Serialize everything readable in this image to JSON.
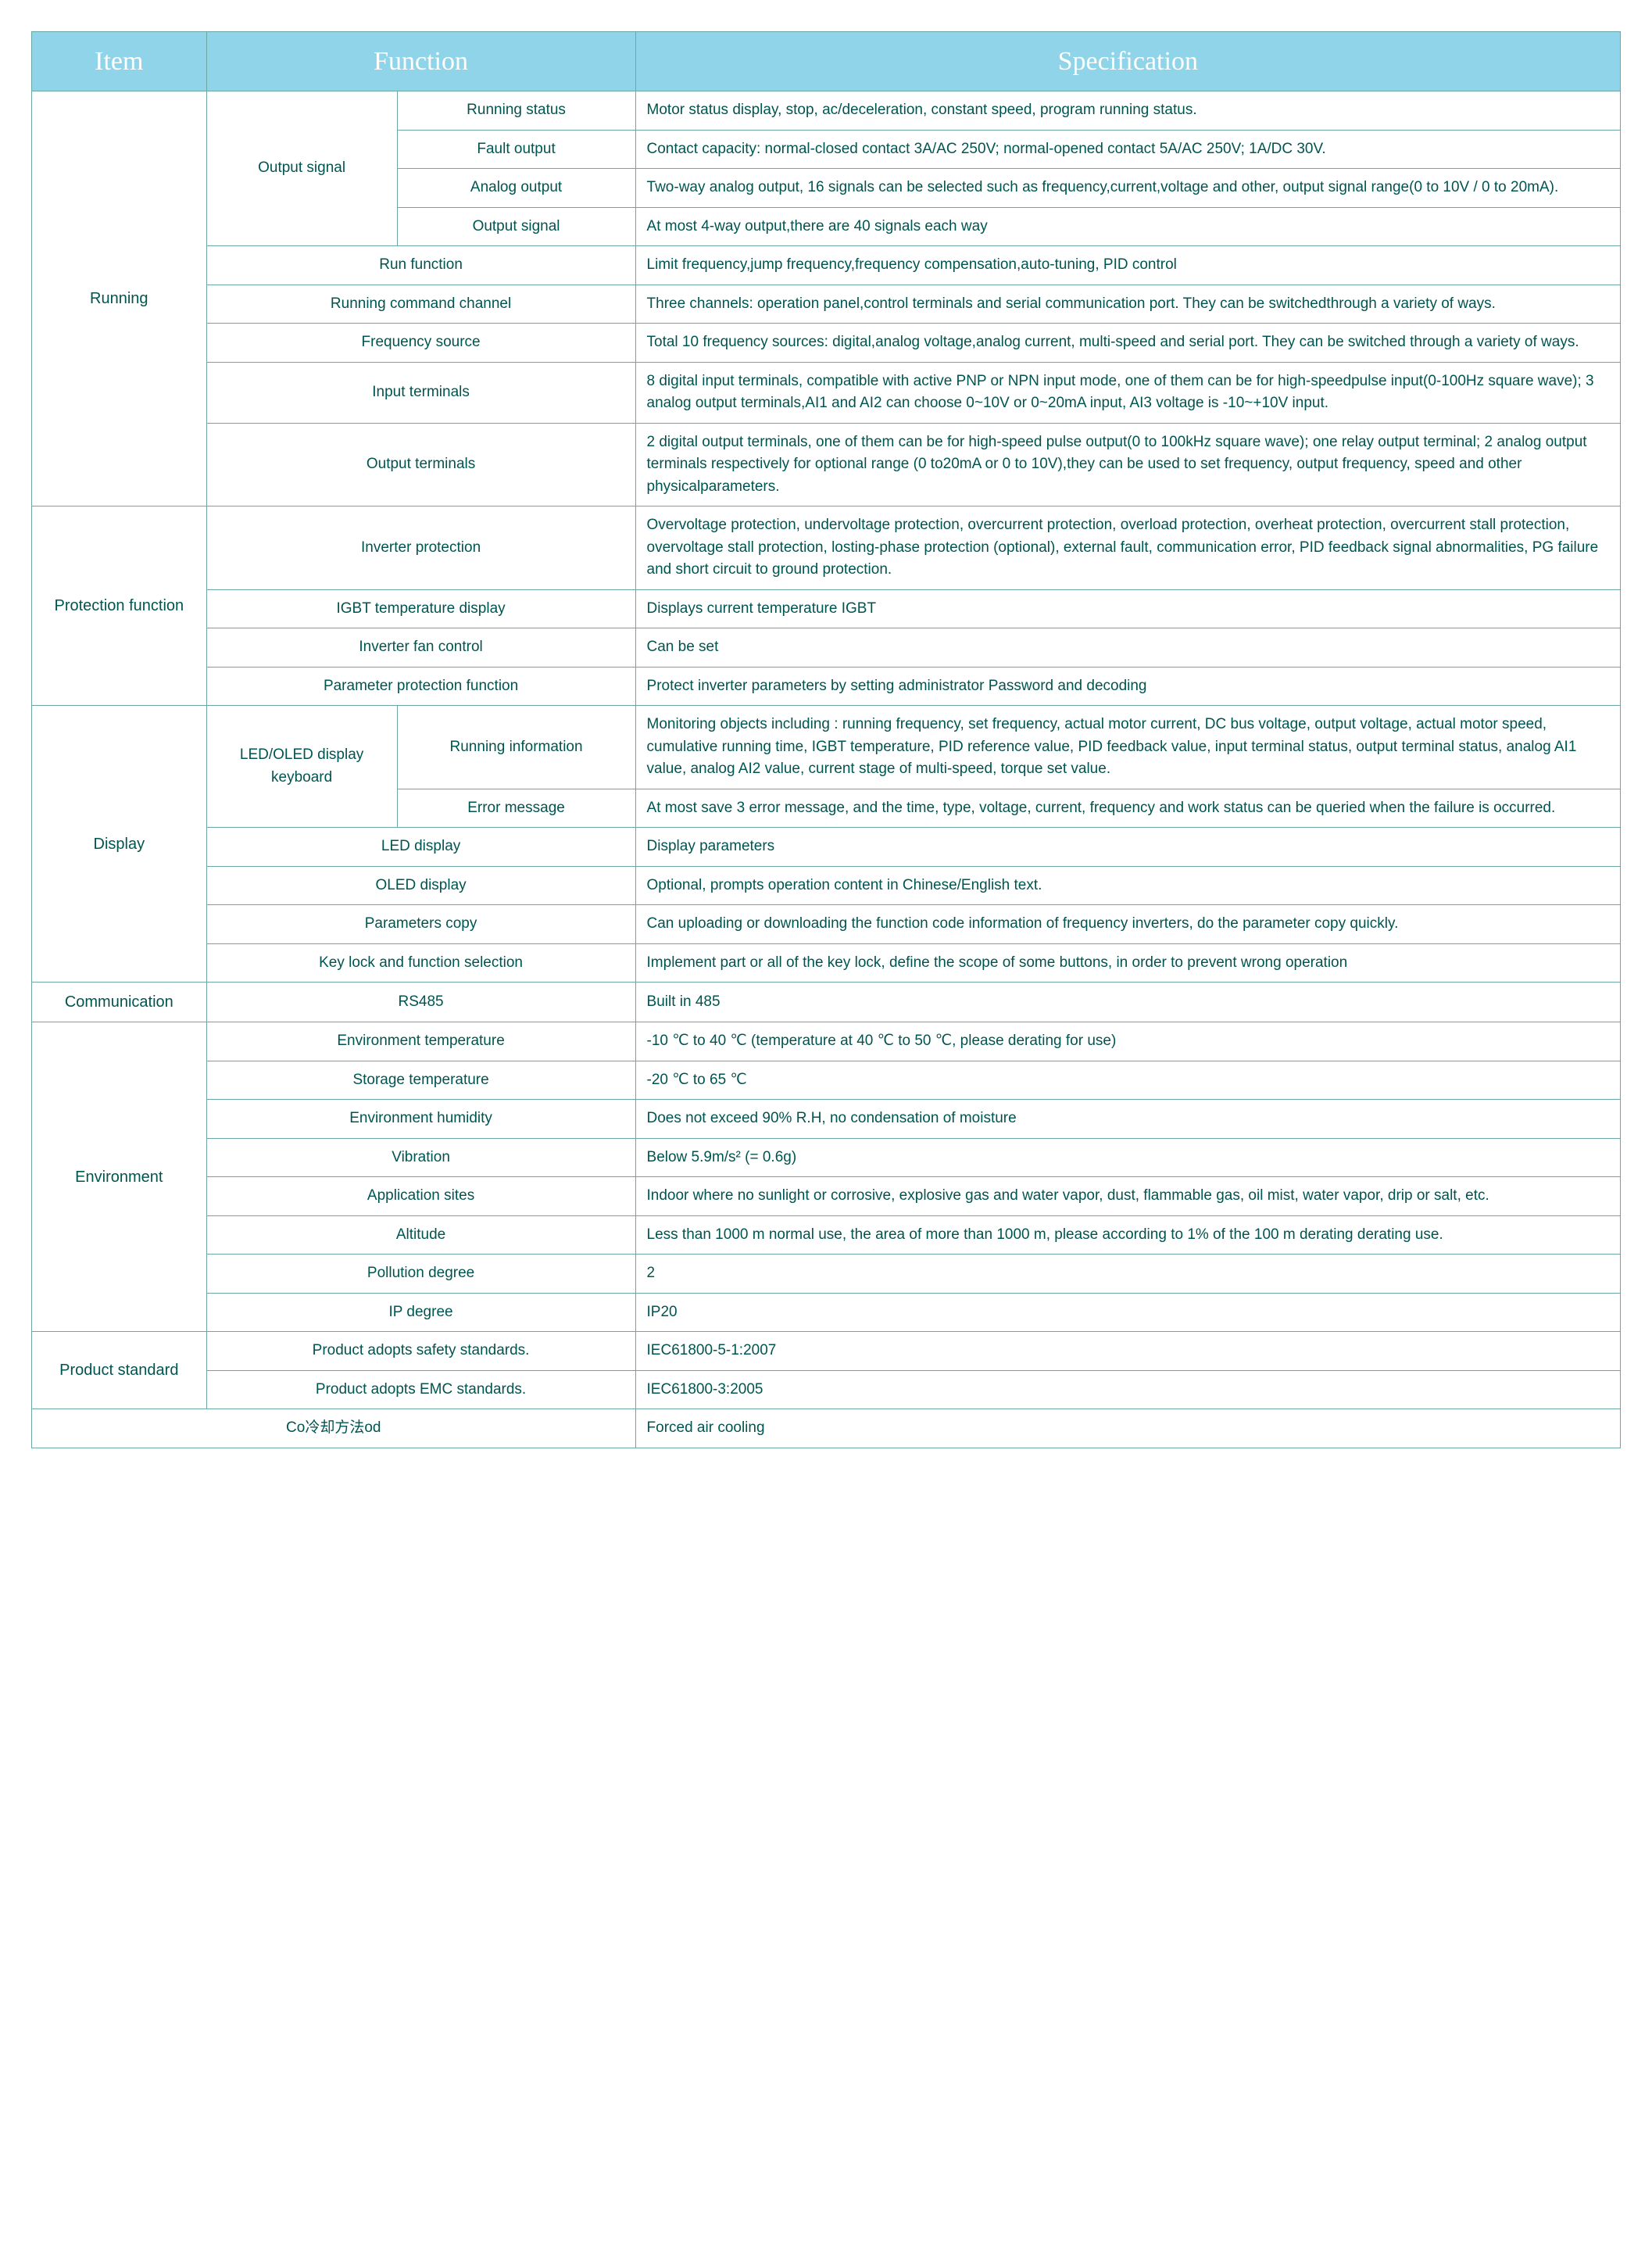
{
  "colors": {
    "header_bg": "#8fd4e8",
    "header_fg": "#ffffff",
    "border": "#6ba8a5",
    "text": "#005550",
    "page_bg": "#ffffff"
  },
  "header": {
    "item": "Item",
    "function": "Function",
    "specification": "Specification"
  },
  "rows": [
    {
      "item": "Running",
      "children": [
        {
          "func_a": "Output signal",
          "children": [
            {
              "func_b": "Running status",
              "spec": "Motor status display, stop, ac/deceleration, constant speed, program running status."
            },
            {
              "func_b": "Fault output",
              "spec": "Contact capacity: normal-closed contact 3A/AC 250V; normal-opened contact 5A/AC 250V; 1A/DC 30V."
            },
            {
              "func_b": "Analog output",
              "spec": "Two-way analog output, 16 signals can be selected such as frequency,current,voltage and other, output signal range(0 to 10V / 0 to 20mA)."
            },
            {
              "func_b": "Output signal",
              "spec": "At most 4-way output,there are 40 signals each way"
            }
          ]
        },
        {
          "func_merged": "Run function",
          "spec": "Limit frequency,jump frequency,frequency compensation,auto-tuning, PID control"
        },
        {
          "func_merged": "Running command channel",
          "spec": "Three channels: operation panel,control terminals and serial communication port. They can be switchedthrough a variety of ways."
        },
        {
          "func_merged": "Frequency source",
          "spec": "Total 10 frequency sources: digital,analog voltage,analog current, multi-speed and serial port. They can be switched through a variety of ways."
        },
        {
          "func_merged": "Input terminals",
          "spec": "8 digital input terminals, compatible with active PNP or NPN input mode, one of them can be for high-speedpulse input(0-100Hz square wave); 3 analog output terminals,AI1 and AI2 can choose 0~10V or 0~20mA input, AI3 voltage is -10~+10V input."
        },
        {
          "func_merged": "Output terminals",
          "spec": "2 digital output terminals, one of them can be for high-speed pulse output(0 to 100kHz square wave); one relay output terminal; 2 analog output terminals respectively for optional range (0 to20mA or 0 to 10V),they can be used to set frequency, output frequency, speed and other physicalparameters."
        }
      ]
    },
    {
      "item": "Protection function",
      "children": [
        {
          "func_merged": "Inverter protection",
          "spec": "Overvoltage protection, undervoltage protection, overcurrent protection, overload protection, overheat protection, overcurrent stall protection, overvoltage stall protection, losting-phase protection (optional), external fault, communication error, PID feedback signal abnormalities, PG failure and short circuit to ground protection."
        },
        {
          "func_merged": "IGBT temperature display",
          "spec": "Displays current temperature IGBT"
        },
        {
          "func_merged": "Inverter fan control",
          "spec": "Can be set"
        },
        {
          "func_merged": "Parameter protection function",
          "spec": "Protect inverter parameters by setting administrator Password and decoding"
        }
      ]
    },
    {
      "item": "Display",
      "children": [
        {
          "func_a": "LED/OLED display keyboard",
          "children": [
            {
              "func_b": "Running information",
              "spec": "Monitoring objects including : running frequency, set frequency, actual motor current, DC bus voltage, output voltage, actual motor speed, cumulative running time, IGBT temperature, PID reference value, PID feedback value, input terminal status, output terminal status, analog AI1 value, analog AI2 value, current stage of multi-speed, torque set value."
            },
            {
              "func_b": "Error message",
              "spec": "At most save 3 error message, and the time, type, voltage, current, frequency and work status can be queried when the failure is occurred."
            }
          ]
        },
        {
          "func_merged": "LED display",
          "spec": "Display parameters"
        },
        {
          "func_merged": "OLED display",
          "spec": "Optional, prompts operation content in Chinese/English text."
        },
        {
          "func_merged": "Parameters copy",
          "spec": "Can uploading or downloading the function code information of frequency inverters, do the parameter copy quickly."
        },
        {
          "func_merged": "Key lock and function selection",
          "spec": "Implement part or all of the key lock, define the scope of some buttons, in order to prevent wrong operation"
        }
      ]
    },
    {
      "item": "Communication",
      "children": [
        {
          "func_merged": "RS485",
          "spec": "Built in 485"
        }
      ]
    },
    {
      "item": "Environment",
      "children": [
        {
          "func_merged": "Environment temperature",
          "spec": "-10 ℃ to 40 ℃ (temperature at 40 ℃ to 50 ℃, please derating for use)"
        },
        {
          "func_merged": "Storage temperature",
          "spec": "-20 ℃ to 65 ℃"
        },
        {
          "func_merged": "Environment humidity",
          "spec": "Does not exceed 90% R.H, no condensation of moisture"
        },
        {
          "func_merged": "Vibration",
          "spec": "Below 5.9m/s² (= 0.6g)"
        },
        {
          "func_merged": "Application sites",
          "spec": "Indoor where no sunlight or corrosive, explosive gas and water vapor, dust, flammable gas, oil mist, water vapor, drip or salt, etc."
        },
        {
          "func_merged": "Altitude",
          "spec": "Less than 1000 m normal use, the area of more than 1000 m, please according to 1% of the 100 m derating derating use."
        },
        {
          "func_merged": "Pollution degree",
          "spec": "2"
        },
        {
          "func_merged": "IP degree",
          "spec": "IP20"
        }
      ]
    },
    {
      "item": "Product standard",
      "children": [
        {
          "func_merged": "Product adopts safety standards.",
          "spec": "IEC61800-5-1:2007"
        },
        {
          "func_merged": "Product adopts EMC standards.",
          "spec": "IEC61800-3:2005"
        }
      ]
    },
    {
      "item_merged": "Co冷却方法od",
      "spec": "Forced air cooling"
    }
  ]
}
